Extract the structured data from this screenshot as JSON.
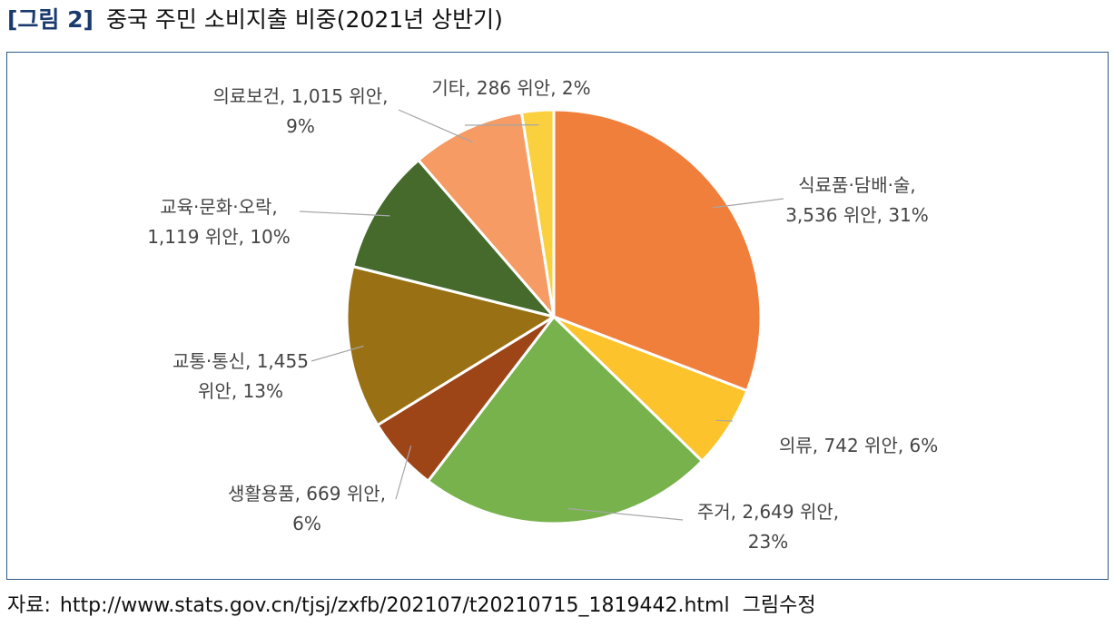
{
  "figure": {
    "label": "[그림 2]",
    "title": "중국 주민 소비지출 비중(2021년 상반기)"
  },
  "source": {
    "prefix": "자료:",
    "url": "http://www.stats.gov.cn/tjsj/zxfb/202107/t20210715_1819442.html",
    "suffix": "그림수정"
  },
  "chart_data": {
    "type": "pie",
    "unit": "위안",
    "start_angle_deg": 0,
    "direction": "clockwise",
    "legend": "none",
    "slices": [
      {
        "name": "식료품·담배·술",
        "value": 3536,
        "percent": 31,
        "color": "#F07F3C",
        "label_lines": [
          "식료품·담배·술,",
          "3,536 위안, 31%"
        ]
      },
      {
        "name": "의류",
        "value": 742,
        "percent": 6,
        "color": "#FCC32C",
        "label_lines": [
          "의류, 742 위안, 6%"
        ]
      },
      {
        "name": "주거",
        "value": 2649,
        "percent": 23,
        "color": "#77B24D",
        "label_lines": [
          "주거, 2,649 위안,",
          "23%"
        ]
      },
      {
        "name": "생활용품",
        "value": 669,
        "percent": 6,
        "color": "#9E4518",
        "label_lines": [
          "생활용품, 669 위안,",
          "6%"
        ]
      },
      {
        "name": "교통·통신",
        "value": 1455,
        "percent": 13,
        "color": "#997114",
        "label_lines": [
          "교통·통신, 1,455",
          "위안, 13%"
        ]
      },
      {
        "name": "교육·문화·오락",
        "value": 1119,
        "percent": 10,
        "color": "#456A2C",
        "label_lines": [
          "교육·문화·오락,",
          "1,119 위안, 10%"
        ]
      },
      {
        "name": "의료보건",
        "value": 1015,
        "percent": 9,
        "color": "#F59B63",
        "label_lines": [
          "의료보건, 1,015 위안,",
          "9%"
        ]
      },
      {
        "name": "기타",
        "value": 286,
        "percent": 2,
        "color": "#FAD03E",
        "label_lines": [
          "기타, 286 위안, 2%"
        ]
      }
    ]
  }
}
